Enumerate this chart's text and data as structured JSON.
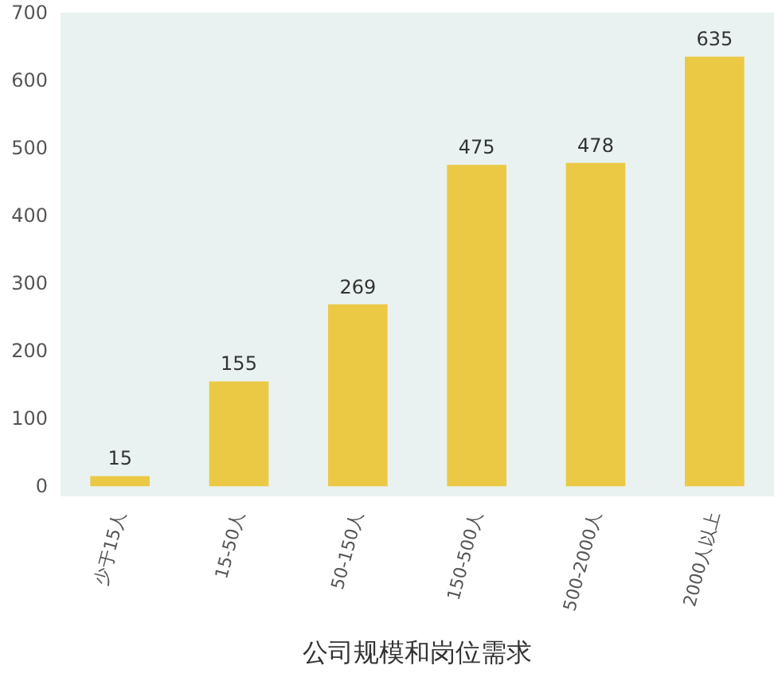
{
  "chart_data": {
    "type": "bar",
    "xlabel": "公司规模和岗位需求",
    "categories": [
      "少于15人",
      "15-50人",
      "50-150人",
      "150-500人",
      "500-2000人",
      "2000人以上"
    ],
    "values": [
      15,
      155,
      269,
      475,
      478,
      635
    ],
    "color": "#ebc945",
    "ylim": [
      -15,
      700
    ],
    "yticks": [
      0,
      100,
      200,
      300,
      400,
      500,
      600,
      700
    ],
    "grid": false,
    "data_labels": true
  }
}
